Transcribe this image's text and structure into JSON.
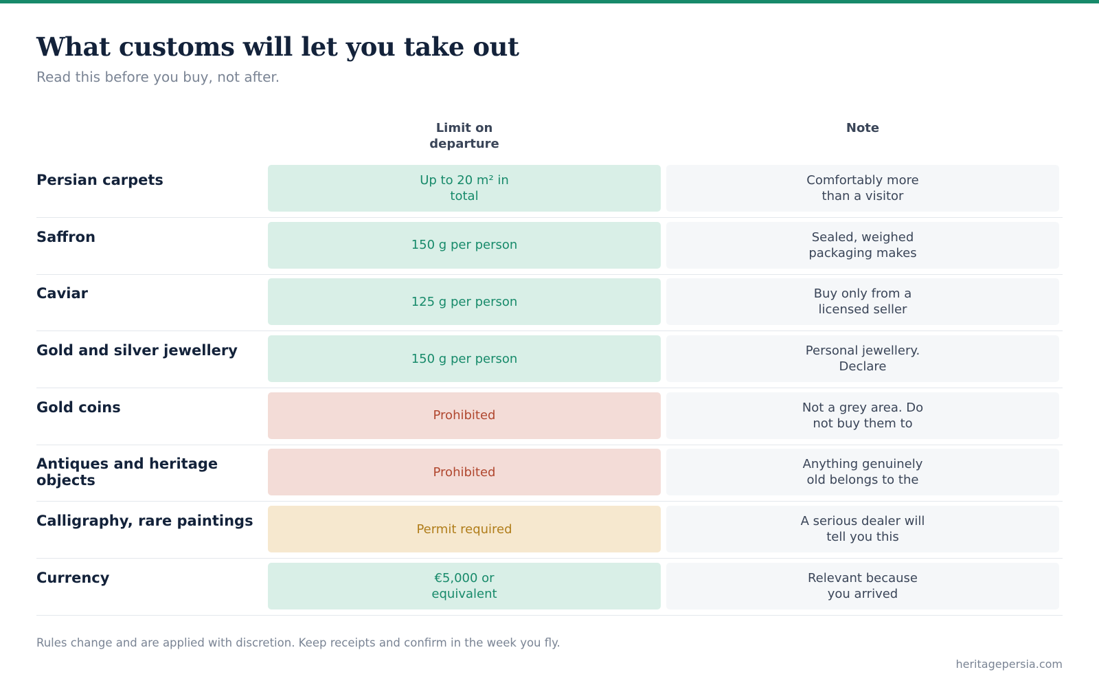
{
  "header": {
    "title": "What customs will let you take out",
    "subtitle": "Read this before you buy, not after."
  },
  "table": {
    "columns": {
      "limit": "Limit on departure",
      "note": "Note"
    },
    "rows": [
      {
        "item": "Persian carpets",
        "limit": "Up to 20 m² in total",
        "status": "ok",
        "note": "Comfortably more than a visitor"
      },
      {
        "item": "Saffron",
        "limit": "150 g per person",
        "status": "ok",
        "note": "Sealed, weighed packaging makes"
      },
      {
        "item": "Caviar",
        "limit": "125 g per person",
        "status": "ok",
        "note": "Buy only from a licensed seller"
      },
      {
        "item": "Gold and silver jewellery",
        "limit": "150 g per person",
        "status": "ok",
        "note": "Personal jewellery. Declare"
      },
      {
        "item": "Gold coins",
        "limit": "Prohibited",
        "status": "no",
        "note": "Not a grey area. Do not buy them to"
      },
      {
        "item": "Antiques and heritage objects",
        "limit": "Prohibited",
        "status": "no",
        "note": "Anything genuinely old belongs to the"
      },
      {
        "item": "Calligraphy, rare paintings",
        "limit": "Permit required",
        "status": "permit",
        "note": "A serious dealer will tell you this"
      },
      {
        "item": "Currency",
        "limit": "€5,000 or equivalent",
        "status": "ok",
        "note": "Relevant because you arrived"
      }
    ]
  },
  "footer": {
    "note": "Rules change and are applied with discretion. Keep receipts and confirm in the week you fly.",
    "source": "heritagepersia.com"
  },
  "colors": {
    "accent": "#178a6a",
    "ok_bg": "#d9efe7",
    "ok_text": "#178a6a",
    "prohibited_bg": "#f3dcd7",
    "prohibited_text": "#b0472f",
    "permit_bg": "#f6e8cf",
    "permit_text": "#b07d1a",
    "note_bg": "#f5f7f9"
  }
}
